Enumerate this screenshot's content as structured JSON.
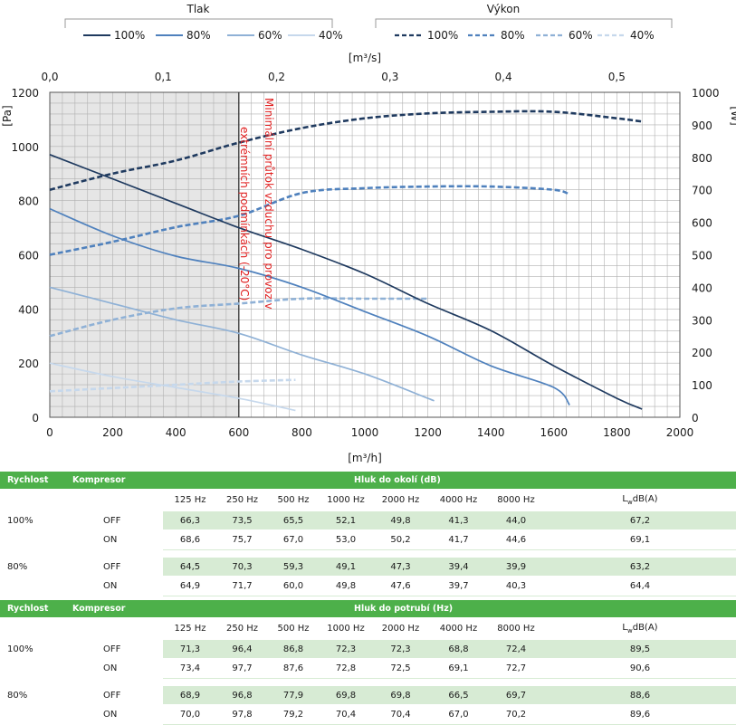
{
  "legend": {
    "pressure_title": "Tlak",
    "power_title": "Výkon",
    "pressure_items": [
      "100%",
      "80%",
      "60%",
      "40%"
    ],
    "power_items": [
      "100%",
      "80%",
      "60%",
      "40%"
    ],
    "colors": [
      "#1f3a5f",
      "#4f81bd",
      "#8fb1d6",
      "#c6d8ec"
    ]
  },
  "chart_data": {
    "type": "line",
    "xlabel": "[m³/h]",
    "x2label": "[m³/s]",
    "ylabel_left": "[Pa]",
    "ylabel_right": "[W]",
    "xlim": [
      0,
      2000
    ],
    "x2lim": [
      0,
      0.5556
    ],
    "ylim_left": [
      0,
      1200
    ],
    "ylim_right": [
      0,
      1000
    ],
    "x_ticks": [
      0,
      200,
      400,
      600,
      800,
      1000,
      1200,
      1400,
      1600,
      1800,
      2000
    ],
    "x2_ticks": [
      "0,0",
      "0,1",
      "0,2",
      "0,3",
      "0,4",
      "0,5"
    ],
    "x2_tick_values": [
      0,
      0.1,
      0.2,
      0.3,
      0.4,
      0.5
    ],
    "y_left_ticks": [
      0,
      200,
      400,
      600,
      800,
      1000,
      1200
    ],
    "y_right_ticks": [
      0,
      100,
      200,
      300,
      400,
      500,
      600,
      700,
      800,
      900,
      1000
    ],
    "grid": true,
    "shaded_region": {
      "x_from": 0,
      "x_to": 600
    },
    "annotation": "Minimální průtok vzduchu pro provoz v extrémních podmínkách (-20°C)",
    "pressure_series": [
      {
        "name": "100%",
        "x": [
          0,
          200,
          400,
          600,
          800,
          1000,
          1200,
          1400,
          1600,
          1800,
          1880
        ],
        "y": [
          970,
          880,
          790,
          700,
          620,
          530,
          420,
          320,
          190,
          70,
          30
        ]
      },
      {
        "name": "80%",
        "x": [
          0,
          200,
          400,
          600,
          800,
          1000,
          1200,
          1400,
          1600,
          1650
        ],
        "y": [
          770,
          670,
          595,
          550,
          480,
          390,
          300,
          190,
          110,
          45
        ]
      },
      {
        "name": "60%",
        "x": [
          0,
          200,
          400,
          600,
          800,
          1000,
          1200,
          1210
        ],
        "y": [
          480,
          420,
          360,
          310,
          230,
          160,
          70,
          65
        ]
      },
      {
        "name": "40%",
        "x": [
          0,
          200,
          400,
          600,
          780
        ],
        "y": [
          200,
          150,
          110,
          70,
          25
        ]
      }
    ],
    "power_series": [
      {
        "name": "100%",
        "x": [
          0,
          200,
          400,
          600,
          800,
          1000,
          1200,
          1400,
          1600,
          1800,
          1880
        ],
        "y": [
          700,
          750,
          790,
          845,
          890,
          920,
          935,
          940,
          940,
          920,
          910
        ]
      },
      {
        "name": "80%",
        "x": [
          0,
          200,
          400,
          600,
          800,
          1000,
          1200,
          1400,
          1600,
          1650
        ],
        "y": [
          500,
          540,
          585,
          620,
          690,
          705,
          710,
          710,
          700,
          685
        ]
      },
      {
        "name": "60%",
        "x": [
          0,
          200,
          400,
          600,
          800,
          1000,
          1200
        ],
        "y": [
          250,
          300,
          335,
          350,
          365,
          365,
          365
        ]
      },
      {
        "name": "40%",
        "x": [
          0,
          200,
          400,
          600,
          780
        ],
        "y": [
          80,
          90,
          100,
          110,
          115
        ]
      }
    ]
  },
  "table1": {
    "header": {
      "col1": "Rychlost",
      "col2": "Kompresor",
      "title": "Hluk do okolí (dB)"
    },
    "freqs": [
      "125 Hz",
      "250 Hz",
      "500 Hz",
      "1000 Hz",
      "2000 Hz",
      "4000 Hz",
      "8000 Hz"
    ],
    "lw": "L",
    "lw_sub": "w",
    "lw_rest": "dB(A)",
    "rows": [
      {
        "speed": "100%",
        "comp": "OFF",
        "vals": [
          "66,3",
          "73,5",
          "65,5",
          "52,1",
          "49,8",
          "41,3",
          "44,0"
        ],
        "lw": "67,2"
      },
      {
        "speed": "",
        "comp": "ON",
        "vals": [
          "68,6",
          "75,7",
          "67,0",
          "53,0",
          "50,2",
          "41,7",
          "44,6"
        ],
        "lw": "69,1"
      },
      {
        "speed": "80%",
        "comp": "OFF",
        "vals": [
          "64,5",
          "70,3",
          "59,3",
          "49,1",
          "47,3",
          "39,4",
          "39,9"
        ],
        "lw": "63,2"
      },
      {
        "speed": "",
        "comp": "ON",
        "vals": [
          "64,9",
          "71,7",
          "60,0",
          "49,8",
          "47,6",
          "39,7",
          "40,3"
        ],
        "lw": "64,4"
      }
    ]
  },
  "table2": {
    "header": {
      "col1": "Rychlost",
      "col2": "Kompresor",
      "title": "Hluk do potrubí (Hz)"
    },
    "freqs": [
      "125 Hz",
      "250 Hz",
      "500 Hz",
      "1000 Hz",
      "2000 Hz",
      "4000 Hz",
      "8000 Hz"
    ],
    "lw": "L",
    "lw_sub": "w",
    "lw_rest": "dB(A)",
    "rows": [
      {
        "speed": "100%",
        "comp": "OFF",
        "vals": [
          "71,3",
          "96,4",
          "86,8",
          "72,3",
          "72,3",
          "68,8",
          "72,4"
        ],
        "lw": "89,5"
      },
      {
        "speed": "",
        "comp": "ON",
        "vals": [
          "73,4",
          "97,7",
          "87,6",
          "72,8",
          "72,5",
          "69,1",
          "72,7"
        ],
        "lw": "90,6"
      },
      {
        "speed": "80%",
        "comp": "OFF",
        "vals": [
          "68,9",
          "96,8",
          "77,9",
          "69,8",
          "69,8",
          "66,5",
          "69,7"
        ],
        "lw": "88,6"
      },
      {
        "speed": "",
        "comp": "ON",
        "vals": [
          "70,0",
          "97,8",
          "79,2",
          "70,4",
          "70,4",
          "67,0",
          "70,2"
        ],
        "lw": "89,6"
      }
    ]
  }
}
